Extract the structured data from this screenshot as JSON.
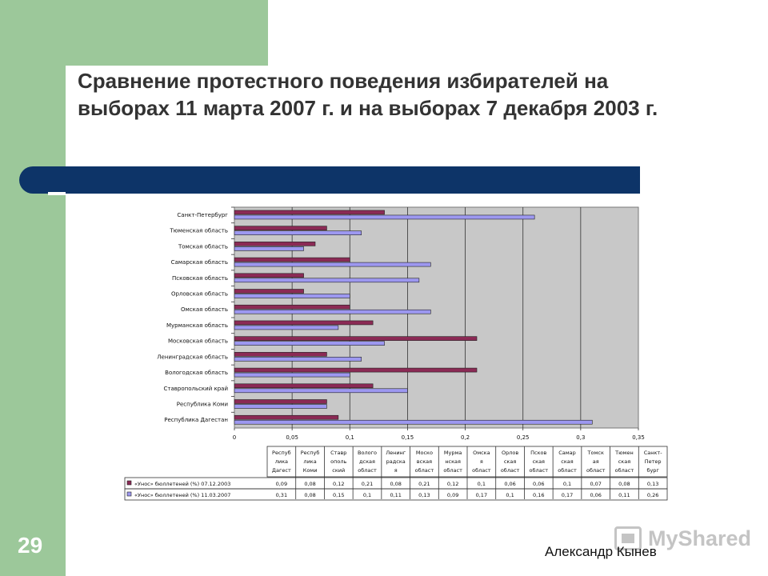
{
  "slide": {
    "title": "Сравнение протестного поведения избирателей на выборах 11 марта 2007 г. и на выборах 7 декабря 2003 г.",
    "page_number": "29",
    "author": "Александр Кынев",
    "watermark": "MyShared"
  },
  "colors": {
    "green_panel": "#9cc89a",
    "dark_band": "#0d3468",
    "series_2003": "#8b2a55",
    "series_2007": "#9d98f0",
    "plot_bg": "#c8c8c8"
  },
  "chart_data": {
    "type": "bar",
    "orientation": "horizontal",
    "categories": [
      "Санкт-Петербург",
      "Тюменская область",
      "Томская область",
      "Самарская область",
      "Псковская область",
      "Орловская область",
      "Омская область",
      "Мурманская область",
      "Московская область",
      "Ленинградская область",
      "Вологодская область",
      "Ставропольский край",
      "Республика Коми",
      "Республика Дагестан"
    ],
    "series": [
      {
        "name": "«Унос» бюллетеней (%) 07.12.2003",
        "color": "#8b2a55",
        "values": [
          0.13,
          0.08,
          0.07,
          0.1,
          0.06,
          0.06,
          0.1,
          0.12,
          0.21,
          0.08,
          0.21,
          0.12,
          0.08,
          0.09
        ]
      },
      {
        "name": "«Унос» бюллетеней (%) 11.03.2007",
        "color": "#9d98f0",
        "values": [
          0.26,
          0.11,
          0.06,
          0.17,
          0.16,
          0.1,
          0.17,
          0.09,
          0.13,
          0.11,
          0.1,
          0.15,
          0.08,
          0.31
        ]
      }
    ],
    "xlim": [
      0,
      0.35
    ],
    "x_ticks": [
      "0",
      "0,05",
      "0,1",
      "0,15",
      "0,2",
      "0,25",
      "0,3",
      "0,35"
    ],
    "grid": true,
    "data_table": {
      "column_headers": [
        [
          "Респуб",
          "лика",
          "Дагест"
        ],
        [
          "Респуб",
          "лика",
          "Коми"
        ],
        [
          "Ставр",
          "ополь",
          "ский"
        ],
        [
          "Волого",
          "дская",
          "област"
        ],
        [
          "Ленинг",
          "радска",
          "я"
        ],
        [
          "Моско",
          "вская",
          "област"
        ],
        [
          "Мурма",
          "нская",
          "област"
        ],
        [
          "Омска",
          "я",
          "област"
        ],
        [
          "Орлов",
          "ская",
          "област"
        ],
        [
          "Псков",
          "ская",
          "област"
        ],
        [
          "Самар",
          "ская",
          "област"
        ],
        [
          "Томск",
          "ая",
          "област"
        ],
        [
          "Тюмен",
          "ская",
          "област"
        ],
        [
          "Санкт-",
          "Петер",
          "бург"
        ]
      ],
      "rows": [
        {
          "label": "«Унос» бюллетеней (%) 07.12.2003",
          "cells": [
            "0,09",
            "0,08",
            "0,12",
            "0,21",
            "0,08",
            "0,21",
            "0,12",
            "0,1",
            "0,06",
            "0,06",
            "0,1",
            "0,07",
            "0,08",
            "0,13"
          ]
        },
        {
          "label": "«Унос» бюллетеней (%) 11.03.2007",
          "cells": [
            "0,31",
            "0,08",
            "0,15",
            "0,1",
            "0,11",
            "0,13",
            "0,09",
            "0,17",
            "0,1",
            "0,16",
            "0,17",
            "0,06",
            "0,11",
            "0,26"
          ]
        }
      ]
    }
  }
}
